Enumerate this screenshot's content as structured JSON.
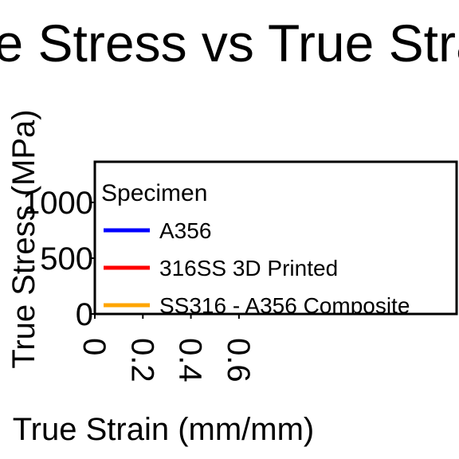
{
  "chart_data": {
    "type": "line",
    "title": "True Stress vs True Strain",
    "xlabel": "True Strain (mm/mm)",
    "ylabel": "True Stress (MPa)",
    "xlim": [
      0,
      0.7
    ],
    "ylim": [
      0,
      1100
    ],
    "x_ticks": [
      "0",
      "0.2",
      "0.4",
      "0.6"
    ],
    "y_ticks": [
      "0",
      "500",
      "1000"
    ],
    "grid": false,
    "legend": {
      "title": "Specimen",
      "placement": "top-right"
    },
    "series": [
      {
        "name": "A356",
        "color": "#0000ff",
        "x": [],
        "y": []
      },
      {
        "name": "316SS 3D Printed",
        "color": "#ff0000",
        "x": [],
        "y": []
      },
      {
        "name": "SS316 - A356 Composite",
        "color": "#ffa500",
        "x": [],
        "y": []
      }
    ]
  }
}
